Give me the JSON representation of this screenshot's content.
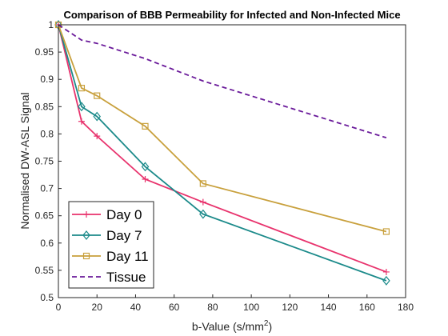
{
  "chart_data": {
    "type": "line",
    "title": "Comparison of BBB Permeability for Infected and Non-Infected Mice",
    "xlabel": "b-Value (s/mm²)",
    "xlabel_main": "b-Value (s/mm",
    "xlabel_sup": "2",
    "xlabel_close": ")",
    "ylabel": "Normalised DW-ASL Signal",
    "xlim": [
      0,
      180
    ],
    "ylim": [
      0.5,
      1
    ],
    "xticks": [
      "0",
      "20",
      "40",
      "60",
      "80",
      "100",
      "120",
      "140",
      "160",
      "180"
    ],
    "yticks": [
      "0.5",
      "0.55",
      "0.6",
      "0.65",
      "0.7",
      "0.75",
      "0.8",
      "0.85",
      "0.9",
      "0.95",
      "1"
    ],
    "grid": false,
    "legend_position": "bottom-left",
    "series": [
      {
        "name": "Day 0",
        "color": "#e8336d",
        "marker": "plus",
        "line_style": "solid",
        "x": [
          0,
          12,
          20,
          45,
          75,
          170
        ],
        "y": [
          1.0,
          0.823,
          0.796,
          0.717,
          0.675,
          0.547
        ]
      },
      {
        "name": "Day 7",
        "color": "#1b8a8a",
        "marker": "diamond",
        "line_style": "solid",
        "x": [
          0,
          12,
          20,
          45,
          75,
          170
        ],
        "y": [
          1.0,
          0.85,
          0.832,
          0.74,
          0.653,
          0.531
        ]
      },
      {
        "name": "Day 11",
        "color": "#c8a03c",
        "marker": "square",
        "line_style": "solid",
        "x": [
          0,
          12,
          20,
          45,
          75,
          170
        ],
        "y": [
          1.0,
          0.884,
          0.87,
          0.814,
          0.709,
          0.621
        ]
      },
      {
        "name": "Tissue",
        "color": "#6a1a9a",
        "marker": "none",
        "line_style": "dashed",
        "x": [
          0,
          12,
          20,
          45,
          75,
          170
        ],
        "y": [
          1.0,
          0.972,
          0.966,
          0.938,
          0.897,
          0.793
        ]
      }
    ]
  }
}
